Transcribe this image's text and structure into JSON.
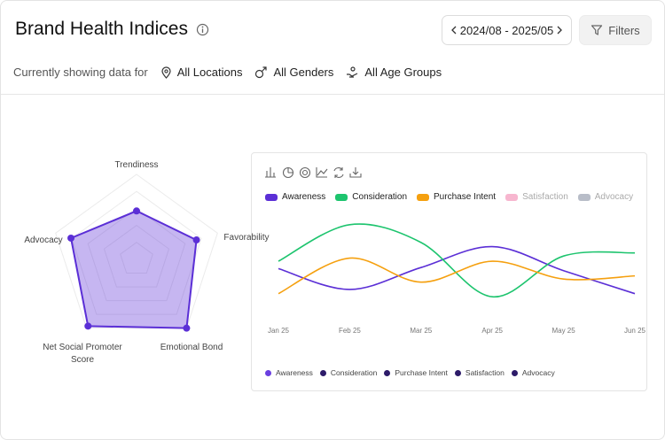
{
  "header": {
    "title": "Brand Health Indices",
    "date_range": "2024/08 - 2025/05",
    "filters_button": "Filters"
  },
  "filter_bar": {
    "label": "Currently showing data for",
    "location": "All Locations",
    "gender": "All Genders",
    "age_group": "All Age Groups"
  },
  "chart_data": [
    {
      "type": "radar",
      "categories": [
        "Trendiness",
        "Favorability",
        "Emotional Bond",
        "Net Social Promoter Score",
        "Advocacy"
      ],
      "values": [
        57,
        74,
        100,
        97,
        81
      ],
      "color": "#5b2fd6",
      "rlim": [
        0,
        100
      ],
      "rticks": [
        20,
        40,
        60,
        80,
        100
      ]
    },
    {
      "type": "line",
      "categories": [
        "Jan 25",
        "Feb 25",
        "Mar 25",
        "Apr 25",
        "May 25",
        "Jun 25"
      ],
      "ylim": [
        0,
        100
      ],
      "series": [
        {
          "name": "Awareness",
          "color": "#5b2fd6",
          "values": [
            48,
            28,
            49,
            69,
            46,
            24
          ]
        },
        {
          "name": "Consideration",
          "color": "#1dc46e",
          "values": [
            55,
            90,
            73,
            21,
            60,
            63
          ]
        },
        {
          "name": "Purchase Intent",
          "color": "#f5a00f",
          "values": [
            24,
            58,
            35,
            55,
            38,
            41
          ]
        },
        {
          "name": "Satisfaction",
          "color": "#f7b6cf",
          "hidden": true
        },
        {
          "name": "Advocacy",
          "color": "#b8bdc8",
          "hidden": true
        }
      ]
    }
  ]
}
